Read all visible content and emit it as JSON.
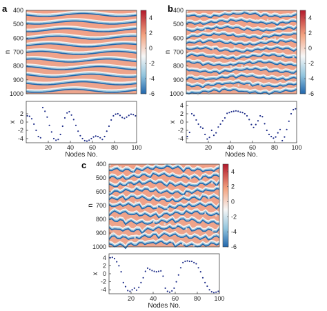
{
  "colors": {
    "high": "#b2182b",
    "mid_high": "#f4a582",
    "mid": "#f7f7f7",
    "mid_low": "#92c5de",
    "low": "#2166ac",
    "dots": "#1f2e8a"
  },
  "chart_data": [
    {
      "panel": "a",
      "type": "heatmap",
      "title": "",
      "xlabel": "",
      "ylabel": "n",
      "ylim": [
        400,
        1000
      ],
      "yticks": [
        "400",
        "500",
        "600",
        "700",
        "800",
        "900",
        "1000"
      ],
      "colorbar": {
        "range": [
          -6,
          5
        ],
        "ticks": [
          "4",
          "2",
          "0",
          "-2",
          "-4",
          "-6"
        ]
      },
      "pattern": "traveling waves, clustered kinks",
      "stripes": 11,
      "scatter": {
        "type": "scatter",
        "xlabel": "Nodes No.",
        "ylabel": "x",
        "xlim": [
          0,
          100
        ],
        "ylim": [
          -5,
          5
        ],
        "xticks": [
          "20",
          "40",
          "60",
          "80",
          "100"
        ],
        "yticks": [
          "2",
          "0",
          "-2",
          "-4"
        ],
        "x": [
          1,
          3,
          5,
          7,
          9,
          11,
          13,
          15,
          17,
          19,
          21,
          23,
          25,
          27,
          29,
          31,
          33,
          35,
          37,
          39,
          41,
          43,
          45,
          47,
          49,
          51,
          53,
          55,
          57,
          59,
          61,
          63,
          65,
          67,
          69,
          71,
          73,
          75,
          77,
          79,
          81,
          83,
          85,
          87,
          89,
          91,
          93,
          95,
          97,
          99
        ],
        "y": [
          1.5,
          1.4,
          0.8,
          -0.5,
          -2.0,
          -3.5,
          -3.8,
          3.5,
          2.6,
          1.2,
          -0.8,
          -2.4,
          -4.0,
          -4.4,
          -4.2,
          -3.0,
          -1.0,
          1.0,
          2.2,
          2.5,
          1.7,
          0.6,
          -0.8,
          -2.2,
          -3.3,
          -4.0,
          -4.5,
          -4.6,
          -4.4,
          -4.0,
          -3.6,
          -3.4,
          -3.5,
          -3.8,
          -4.2,
          -3.5,
          -2.2,
          -1.0,
          0.5,
          1.5,
          1.9,
          2.0,
          1.6,
          1.1,
          0.9,
          1.2,
          1.6,
          1.9,
          1.8,
          1.5
        ]
      }
    },
    {
      "panel": "b",
      "type": "heatmap",
      "title": "",
      "xlabel": "",
      "ylabel": "n",
      "ylim": [
        400,
        1000
      ],
      "yticks": [
        "400",
        "500",
        "600",
        "700",
        "800",
        "900",
        "1000"
      ],
      "colorbar": {
        "range": [
          -6,
          5
        ],
        "ticks": [
          "4",
          "2",
          "0",
          "-2",
          "-4",
          "-6"
        ]
      },
      "pattern": "fragmented waves, many defects",
      "stripes": 12,
      "scatter": {
        "type": "scatter",
        "xlabel": "Nodes No.",
        "ylabel": "x",
        "xlim": [
          0,
          100
        ],
        "ylim": [
          -5,
          5
        ],
        "xticks": [
          "20",
          "40",
          "60",
          "80",
          "100"
        ],
        "yticks": [
          "4",
          "2",
          "0",
          "-2",
          "-4"
        ],
        "x": [
          1,
          3,
          5,
          7,
          9,
          11,
          13,
          15,
          17,
          19,
          21,
          23,
          25,
          27,
          29,
          31,
          33,
          35,
          37,
          39,
          41,
          43,
          45,
          47,
          49,
          51,
          53,
          55,
          57,
          59,
          61,
          63,
          65,
          67,
          69,
          71,
          73,
          75,
          77,
          79,
          81,
          83,
          85,
          87,
          89,
          91,
          93,
          95,
          97,
          99
        ],
        "y": [
          -3.5,
          -2.5,
          2.0,
          1.6,
          0.5,
          -0.5,
          -1.2,
          -1.5,
          -3.0,
          -4.1,
          -3.7,
          -2.0,
          -3.2,
          -2.6,
          -1.2,
          -0.5,
          0.3,
          1.0,
          2.1,
          2.3,
          2.5,
          2.6,
          2.7,
          2.6,
          2.4,
          2.3,
          2.0,
          1.5,
          0.6,
          -0.6,
          -1.3,
          -0.6,
          0.3,
          1.5,
          1.3,
          -0.4,
          -2.0,
          -3.0,
          -3.5,
          -3.9,
          -3.6,
          -2.6,
          -1.8,
          -4.5,
          -3.6,
          -1.8,
          0.2,
          2.0,
          3.0,
          3.2
        ]
      }
    },
    {
      "panel": "c",
      "type": "heatmap",
      "title": "",
      "xlabel": "",
      "ylabel": "n",
      "ylim": [
        400,
        1000
      ],
      "yticks": [
        "400",
        "500",
        "600",
        "700",
        "800",
        "900",
        "1000"
      ],
      "colorbar": {
        "range": [
          -6,
          5
        ],
        "ticks": [
          "4",
          "2",
          "0",
          "-2",
          "-4",
          "-6"
        ]
      },
      "pattern": "smooth parallel waves",
      "stripes": 11,
      "scatter": {
        "type": "scatter",
        "xlabel": "Nodes No.",
        "ylabel": "x",
        "xlim": [
          0,
          100
        ],
        "ylim": [
          -5,
          5
        ],
        "xticks": [
          "20",
          "40",
          "60",
          "80",
          "100"
        ],
        "yticks": [
          "4",
          "2",
          "0",
          "-2",
          "-4"
        ],
        "x": [
          1,
          3,
          5,
          7,
          9,
          11,
          13,
          15,
          17,
          19,
          21,
          23,
          25,
          27,
          29,
          31,
          33,
          35,
          37,
          39,
          41,
          43,
          45,
          47,
          49,
          51,
          53,
          55,
          57,
          59,
          61,
          63,
          65,
          67,
          69,
          71,
          73,
          75,
          77,
          79,
          81,
          83,
          85,
          87,
          89,
          91,
          93,
          95,
          97,
          99
        ],
        "y": [
          4.0,
          4.1,
          3.8,
          3.0,
          2.0,
          0.5,
          -2.2,
          -3.2,
          -4.2,
          -4.4,
          -4.0,
          -3.6,
          -4.1,
          -3.4,
          -2.2,
          -1.0,
          0.6,
          1.4,
          1.1,
          0.8,
          0.6,
          0.5,
          0.6,
          0.7,
          -0.6,
          -3.6,
          -4.4,
          -4.6,
          -4.3,
          -3.6,
          -2.0,
          -0.3,
          1.5,
          2.8,
          3.1,
          3.2,
          3.1,
          3.1,
          2.8,
          2.5,
          1.5,
          0.5,
          -1.0,
          -2.2,
          -3.1,
          -4.0,
          -4.5,
          -4.7,
          -4.6,
          -4.4
        ]
      }
    }
  ]
}
